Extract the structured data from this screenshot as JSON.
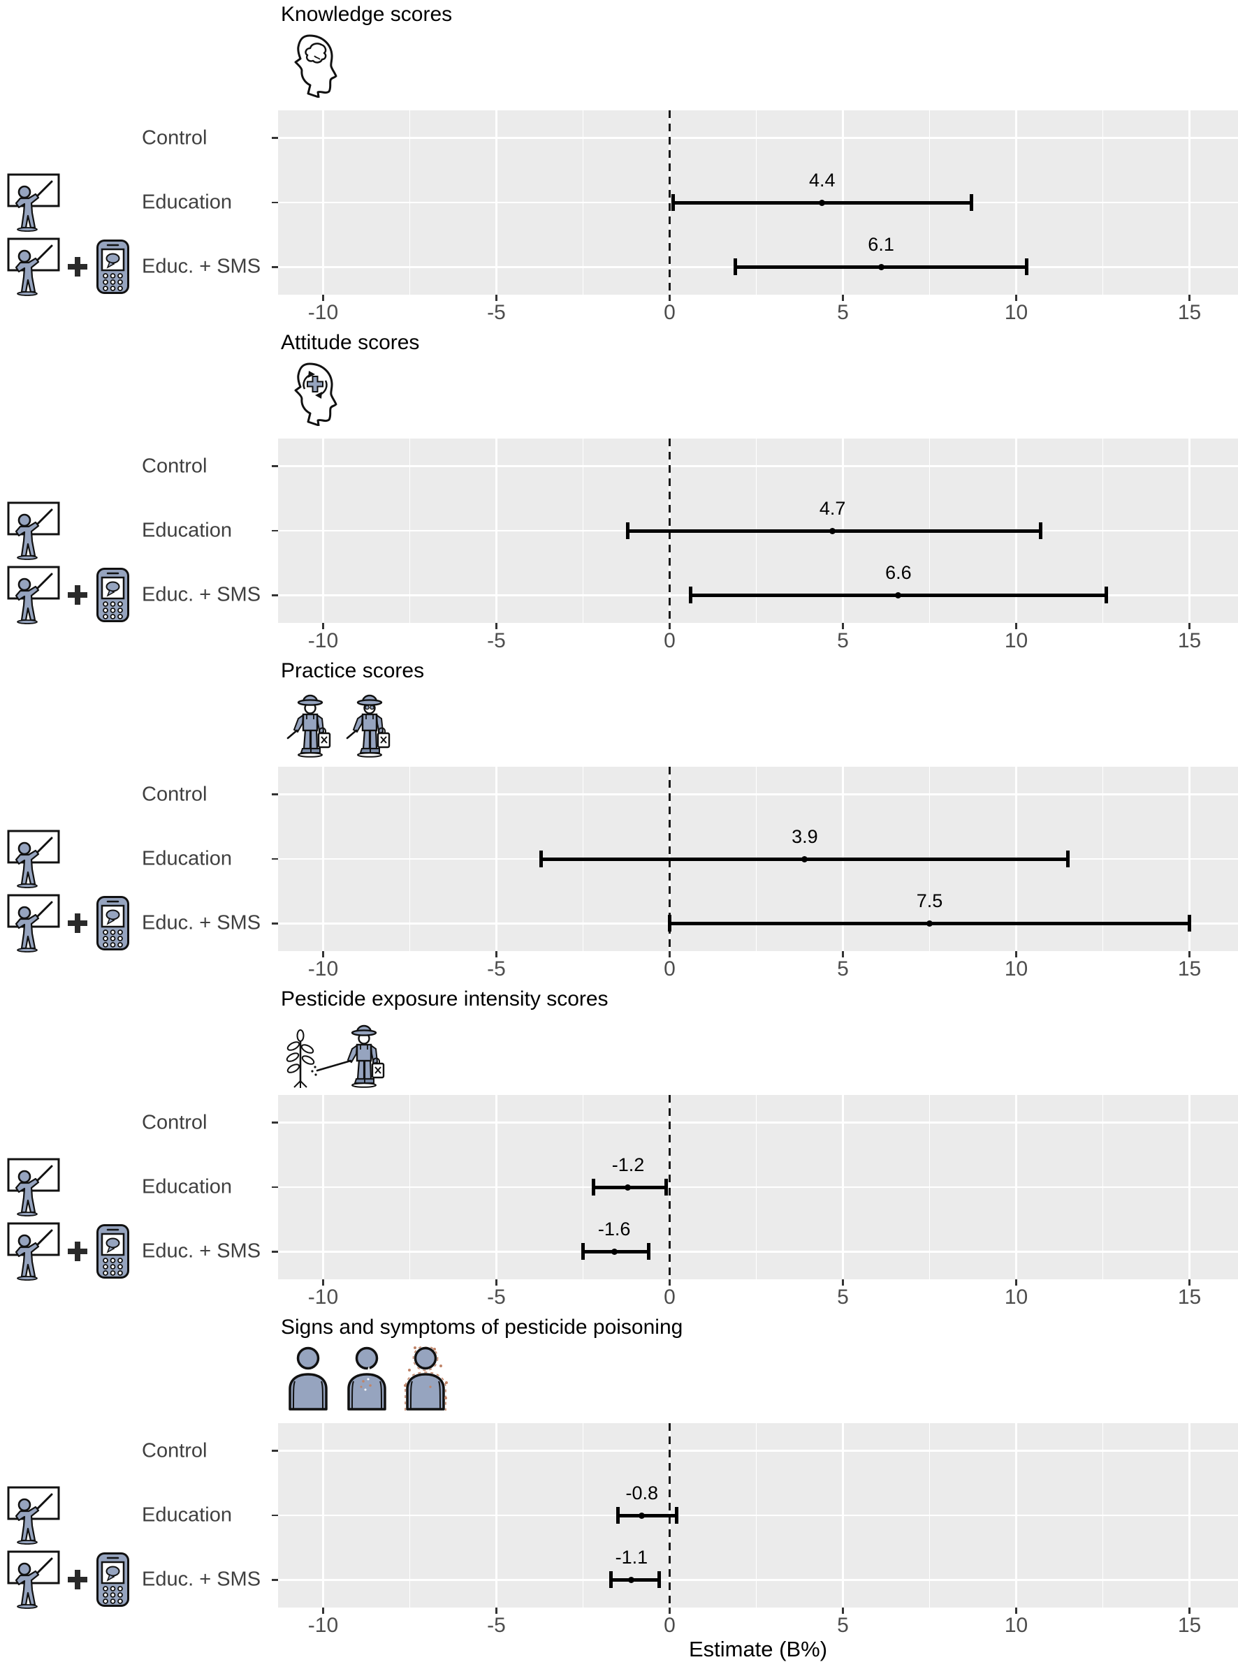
{
  "chart_data": {
    "type": "forest",
    "title": "",
    "xlabel": "Estimate (B%)",
    "x_ticks": [
      -10,
      -5,
      0,
      5,
      10,
      15
    ],
    "x_minor_ticks": [
      -7.5,
      -2.5,
      2.5,
      7.5,
      12.5
    ],
    "xlim": [
      -11.3,
      16.4
    ],
    "reference_line": 0,
    "grid": true,
    "legend": "none",
    "categories": [
      "Control",
      "Education",
      "Educ. + SMS"
    ],
    "row_icons": {
      "Control": [],
      "Education": [
        "teacher-whiteboard-icon"
      ],
      "Educ. + SMS": [
        "teacher-whiteboard-icon",
        "plus-icon",
        "mobile-phone-sms-icon"
      ]
    },
    "panels": [
      {
        "title": "Knowledge scores",
        "icon": "knowledge-head-brain-icon",
        "series": [
          {
            "group": "Control",
            "estimate": null,
            "label": "",
            "ci": null
          },
          {
            "group": "Education",
            "estimate": 4.4,
            "label": "4.4",
            "ci": [
              0.1,
              8.7
            ]
          },
          {
            "group": "Educ. + SMS",
            "estimate": 6.1,
            "label": "6.1",
            "ci": [
              1.9,
              10.3
            ]
          }
        ]
      },
      {
        "title": "Attitude scores",
        "icon": "attitude-head-positive-icon",
        "series": [
          {
            "group": "Control",
            "estimate": null,
            "label": "",
            "ci": null
          },
          {
            "group": "Education",
            "estimate": 4.7,
            "label": "4.7",
            "ci": [
              -1.2,
              10.7
            ]
          },
          {
            "group": "Educ. + SMS",
            "estimate": 6.6,
            "label": "6.6",
            "ci": [
              0.6,
              12.6
            ]
          }
        ]
      },
      {
        "title": "Practice scores",
        "icon": "practice-farmers-icon",
        "series": [
          {
            "group": "Control",
            "estimate": null,
            "label": "",
            "ci": null
          },
          {
            "group": "Education",
            "estimate": 3.9,
            "label": "3.9",
            "ci": [
              -3.7,
              11.5
            ]
          },
          {
            "group": "Educ. + SMS",
            "estimate": 7.5,
            "label": "7.5",
            "ci": [
              0.0,
              15.0
            ]
          }
        ]
      },
      {
        "title": "Pesticide exposure intensity scores",
        "icon": "exposure-spraying-farmer-icon",
        "series": [
          {
            "group": "Control",
            "estimate": null,
            "label": "",
            "ci": null
          },
          {
            "group": "Education",
            "estimate": -1.2,
            "label": "-1.2",
            "ci": [
              -2.2,
              -0.1
            ]
          },
          {
            "group": "Educ. + SMS",
            "estimate": -1.6,
            "label": "-1.6",
            "ci": [
              -2.5,
              -0.6
            ]
          }
        ]
      },
      {
        "title": "Signs and symptoms of pesticide poisoning",
        "icon": "symptoms-torsos-icon",
        "series": [
          {
            "group": "Control",
            "estimate": null,
            "label": "",
            "ci": null
          },
          {
            "group": "Education",
            "estimate": -0.8,
            "label": "-0.8",
            "ci": [
              -1.5,
              0.2
            ]
          },
          {
            "group": "Educ. + SMS",
            "estimate": -1.1,
            "label": "-1.1",
            "ci": [
              -1.7,
              -0.3
            ]
          }
        ]
      }
    ],
    "colors": {
      "panel_bg": "#ebebeb",
      "grid": "#ffffff",
      "bar": "#000000",
      "reference_line": "#1a1a1a",
      "row_label_text": "#404040",
      "tick_text": "#4d4d4d",
      "title_text": "#000000",
      "icon_fill": "#96a4bf",
      "icon_stroke": "#111111",
      "symptom_dot": "#c08468"
    }
  }
}
